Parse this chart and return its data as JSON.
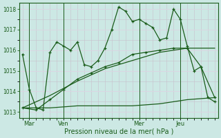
{
  "title": "",
  "xlabel": "Pression niveau de la mer( hPa )",
  "bg_color": "#cce8e4",
  "line_color": "#1a5c1a",
  "grid_major_color": "#c8c8d8",
  "grid_minor_color": "#ddd8e0",
  "ylim": [
    1012.7,
    1018.3
  ],
  "yticks": [
    1013,
    1014,
    1015,
    1016,
    1017,
    1018
  ],
  "day_labels": [
    "Mar",
    "Ven",
    "Mer",
    "Jeu"
  ],
  "day_positions": [
    2,
    12,
    34,
    46
  ],
  "vline_positions": [
    2,
    12,
    34,
    46
  ],
  "xlim": [
    -1,
    57
  ],
  "series1_x": [
    0,
    2,
    4,
    6,
    8,
    10,
    12,
    14,
    16,
    18,
    20,
    22,
    24,
    26,
    28,
    30,
    32,
    34,
    36,
    38,
    40,
    42,
    44,
    46,
    48,
    50,
    52,
    54,
    56
  ],
  "series1_y": [
    1015.8,
    1014.1,
    1013.2,
    1013.1,
    1015.9,
    1016.4,
    1016.2,
    1016.0,
    1016.4,
    1015.3,
    1015.2,
    1015.5,
    1016.1,
    1017.0,
    1018.1,
    1017.9,
    1017.4,
    1017.5,
    1017.3,
    1017.1,
    1016.5,
    1016.6,
    1018.0,
    1017.5,
    1016.2,
    1015.0,
    1015.2,
    1013.7,
    1013.5
  ],
  "series2_x": [
    0,
    8,
    16,
    24,
    32,
    40,
    48,
    56
  ],
  "series2_y": [
    1013.2,
    1013.2,
    1013.3,
    1013.3,
    1013.3,
    1013.4,
    1013.6,
    1013.7
  ],
  "series3_x": [
    0,
    8,
    16,
    24,
    32,
    40,
    48,
    56
  ],
  "series3_y": [
    1013.2,
    1013.8,
    1014.5,
    1015.1,
    1015.5,
    1015.9,
    1016.1,
    1016.1
  ],
  "series4_x": [
    0,
    4,
    8,
    12,
    16,
    20,
    24,
    28,
    32,
    36,
    40,
    44,
    48,
    52,
    56
  ],
  "series4_y": [
    1013.2,
    1013.1,
    1013.6,
    1014.1,
    1014.6,
    1014.9,
    1015.2,
    1015.4,
    1015.8,
    1015.9,
    1016.0,
    1016.1,
    1016.1,
    1015.2,
    1013.7
  ]
}
